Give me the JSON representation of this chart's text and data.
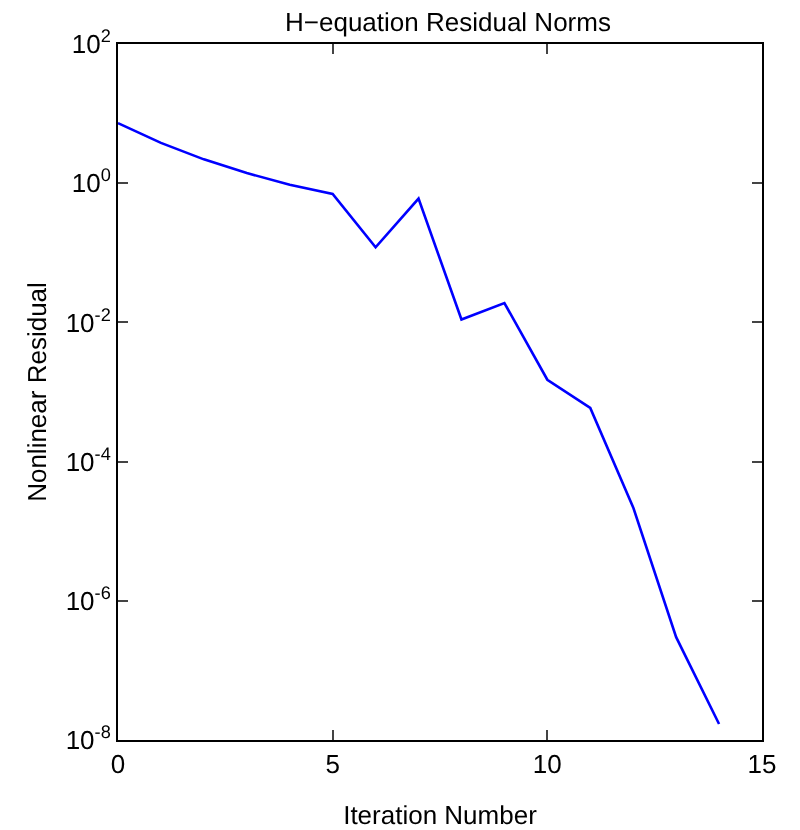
{
  "chart_data": {
    "type": "line",
    "title": "H−equation Residual Norms",
    "xlabel": "Iteration Number",
    "ylabel": "Nonlinear Residual",
    "x": [
      0,
      1,
      2,
      3,
      4,
      5,
      6,
      7,
      8,
      9,
      10,
      11,
      12,
      13,
      14
    ],
    "series": [
      {
        "color": "#0000ff",
        "values": [
          7.3,
          3.8,
          2.2,
          1.4,
          0.95,
          0.7,
          0.12,
          0.6,
          0.011,
          0.019,
          0.0015,
          0.00059,
          2.2e-05,
          3e-07,
          1.7e-08
        ]
      }
    ],
    "log": "y",
    "grid": false,
    "marker": "none",
    "line_style": "solid",
    "xlim": [
      0,
      15
    ],
    "xticks": [
      0,
      5,
      10,
      15
    ],
    "ylim": [
      1e-08,
      100
    ],
    "yticks": [
      {
        "value": 1e-08,
        "label": "10$^{-8}$"
      },
      {
        "value": 1e-06,
        "label": "10$^{-6}$"
      },
      {
        "value": 0.0001,
        "label": "10$^{-4}$"
      },
      {
        "value": 0.01,
        "label": "10$^{-2}$"
      },
      {
        "value": 1,
        "label": "10$^{0}$"
      },
      {
        "value": 100,
        "label": "10$^{2}$"
      }
    ]
  }
}
